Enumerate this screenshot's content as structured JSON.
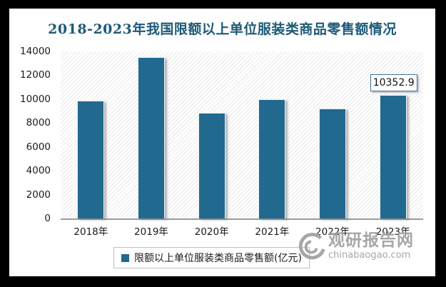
{
  "title": {
    "text": "2018-2023年我国限额以上单位服装类商品零售额情况",
    "color": "#1E5A78"
  },
  "chart_data": {
    "type": "bar",
    "title": "2018-2023年我国限额以上单位服装类商品零售额情况",
    "categories": [
      "2018年",
      "2019年",
      "2020年",
      "2021年",
      "2022年",
      "2023年"
    ],
    "series": [
      {
        "name": "限额以上单位服装类商品零售额(亿元)",
        "values": [
          9870,
          13500,
          8830,
          9970,
          9220,
          10352.9
        ]
      }
    ],
    "xlabel": "",
    "ylabel": "",
    "ylim": [
      0,
      14000
    ],
    "yticks": [
      0,
      2000,
      4000,
      6000,
      8000,
      10000,
      12000,
      14000
    ],
    "grid": false,
    "legend_position": "bottom",
    "bar_color": "#21698F",
    "plot_background": "diagonal-hatch",
    "data_labels": [
      {
        "category": "2023年",
        "text": "10352.9"
      }
    ]
  },
  "legend": {
    "label": "限额以上单位服装类商品零售额(亿元)",
    "marker_color": "#21698F"
  },
  "watermark": {
    "name": "观研报告网",
    "domain": "chinabaogao.com",
    "color": "#a6a6a6"
  }
}
